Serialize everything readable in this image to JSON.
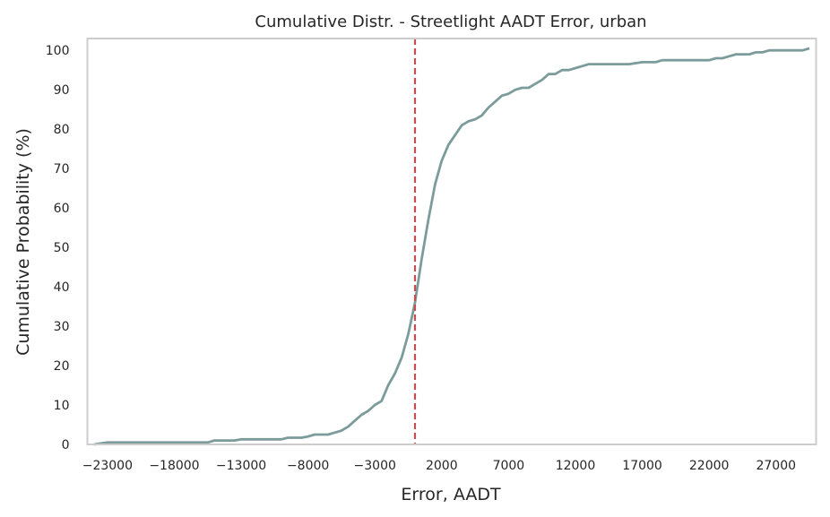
{
  "chart_data": {
    "type": "line",
    "title": "Cumulative Distr. - Streetlight AADT Error, urban",
    "xlabel": "Error, AADT",
    "ylabel": "Cumulative Probability (%)",
    "xlim": [
      -24500,
      30000
    ],
    "ylim": [
      0,
      103
    ],
    "grid": false,
    "xticks": [
      -23000,
      -18000,
      -13000,
      -8000,
      -3000,
      2000,
      7000,
      12000,
      17000,
      22000,
      27000
    ],
    "xtick_labels": [
      "−23000",
      "−18000",
      "−13000",
      "−8000",
      "−3000",
      "2000",
      "7000",
      "12000",
      "17000",
      "22000",
      "27000"
    ],
    "yticks": [
      0,
      10,
      20,
      30,
      40,
      50,
      60,
      70,
      80,
      90,
      100
    ],
    "ytick_labels": [
      "0",
      "10",
      "20",
      "30",
      "40",
      "50",
      "60",
      "70",
      "80",
      "90",
      "100"
    ],
    "series": [
      {
        "color": "#7c9c9c",
        "x": [
          -24000,
          -23000,
          -22000,
          -21000,
          -20000,
          -19000,
          -18000,
          -17000,
          -16000,
          -15500,
          -15000,
          -14000,
          -13500,
          -13000,
          -12000,
          -11000,
          -10000,
          -9500,
          -9000,
          -8500,
          -8000,
          -7500,
          -7000,
          -6500,
          -6000,
          -5500,
          -5000,
          -4500,
          -4000,
          -3500,
          -3000,
          -2500,
          -2000,
          -1500,
          -1000,
          -500,
          0,
          500,
          1000,
          1500,
          2000,
          2500,
          3000,
          3500,
          4000,
          4500,
          5000,
          5500,
          6000,
          6500,
          7000,
          7500,
          8000,
          8500,
          9000,
          9500,
          10000,
          10500,
          11000,
          11500,
          12000,
          12500,
          13000,
          14000,
          15000,
          16000,
          17000,
          17500,
          18000,
          18500,
          19000,
          20000,
          21000,
          22000,
          22500,
          23000,
          23500,
          24000,
          24500,
          25000,
          25500,
          26000,
          26500,
          27000,
          28000,
          29000,
          29500
        ],
        "y": [
          0,
          0.5,
          0.5,
          0.5,
          0.5,
          0.5,
          0.5,
          0.5,
          0.5,
          0.5,
          1.0,
          1.0,
          1.0,
          1.3,
          1.3,
          1.3,
          1.3,
          1.7,
          1.7,
          1.7,
          2.0,
          2.5,
          2.5,
          2.5,
          3.0,
          3.5,
          4.5,
          6.0,
          7.5,
          8.5,
          10.0,
          11.0,
          15.0,
          18.0,
          22.0,
          28.0,
          36.0,
          47.0,
          57.0,
          66.0,
          72.0,
          76.0,
          78.5,
          81.0,
          82.0,
          82.5,
          83.5,
          85.5,
          87.0,
          88.5,
          89.0,
          90.0,
          90.5,
          90.5,
          91.5,
          92.5,
          94.0,
          94.0,
          95.0,
          95.0,
          95.5,
          96.0,
          96.5,
          96.5,
          96.5,
          96.5,
          97.0,
          97.0,
          97.0,
          97.5,
          97.5,
          97.5,
          97.5,
          97.5,
          98.0,
          98.0,
          98.5,
          99.0,
          99.0,
          99.0,
          99.5,
          99.5,
          100.0,
          100.0,
          100.0,
          100.0,
          100.5
        ]
      }
    ],
    "vline": {
      "x": 0,
      "color": "#c44e52",
      "style": "dashed"
    }
  }
}
